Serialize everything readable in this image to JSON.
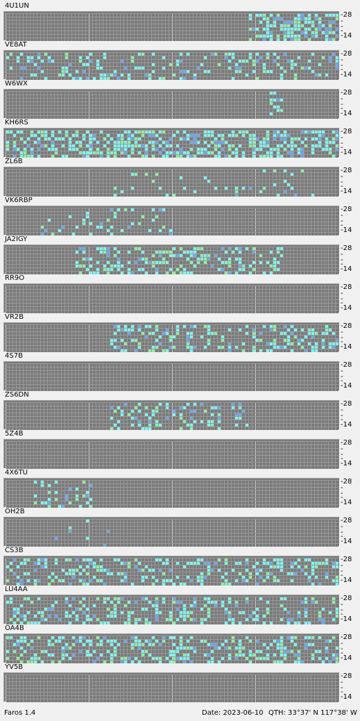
{
  "colors": {
    "grid_bg": "#7a7a7a",
    "grid_line": "#9a9a9a",
    "hour_line": "#d0d0d0",
    "cyan": "#7df5ef",
    "green": "#8ef0a0",
    "blue": "#6fa8f0",
    "purple": "#7070ff",
    "gray": "#a5a5a5"
  },
  "axis": {
    "top": "28",
    "bottom": "14",
    "mid": "-"
  },
  "beacons": [
    {
      "callsign": "4U1UN"
    },
    {
      "callsign": "VE8AT"
    },
    {
      "callsign": "W6WX"
    },
    {
      "callsign": "KH6RS"
    },
    {
      "callsign": "ZL6B"
    },
    {
      "callsign": "VK6RBP"
    },
    {
      "callsign": "JA2IGY"
    },
    {
      "callsign": "RR9O"
    },
    {
      "callsign": "VR2B"
    },
    {
      "callsign": "4S7B"
    },
    {
      "callsign": "ZS6DN"
    },
    {
      "callsign": "5Z4B"
    },
    {
      "callsign": "4X6TU"
    },
    {
      "callsign": "OH2B"
    },
    {
      "callsign": "CS3B"
    },
    {
      "callsign": "LU4AA"
    },
    {
      "callsign": "OA4B"
    },
    {
      "callsign": "YV5B"
    }
  ],
  "status": {
    "app": "Faros 1.4",
    "date": "Date: 2023-06-10",
    "qth": "QTH: 33°37' N  117°38' W"
  }
}
